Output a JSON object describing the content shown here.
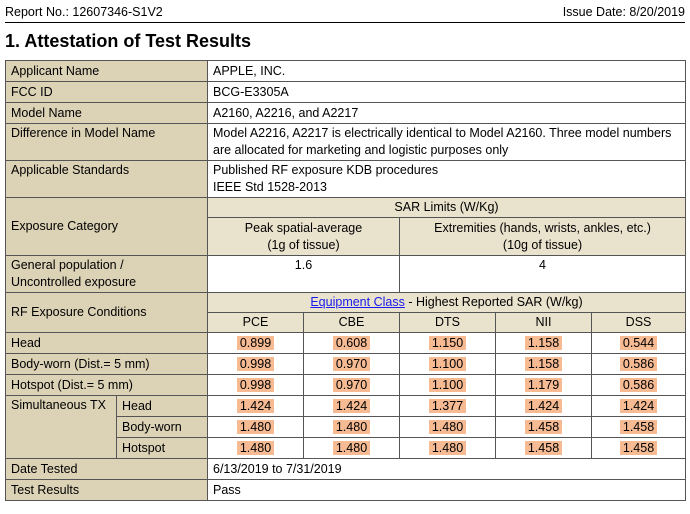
{
  "header": {
    "report_no": "Report No.: 12607346-S1V2",
    "issue_date": "Issue Date: 8/20/2019"
  },
  "section_title": "1.  Attestation of Test Results",
  "info": {
    "applicant_label": "Applicant Name",
    "applicant_value": "APPLE, INC.",
    "fcc_label": "FCC ID",
    "fcc_value": "BCG-E3305A",
    "model_label": "Model Name",
    "model_value": "A2160, A2216, and A2217",
    "diff_label": "Difference in Model Name",
    "diff_value": "Model A2216, A2217 is electrically identical to Model A2160.  Three model numbers are allocated for marketing and logistic purposes only",
    "standards_label": "Applicable Standards",
    "standards_line1": "Published RF exposure KDB procedures",
    "standards_line2": "IEEE Std 1528-2013"
  },
  "exposure": {
    "category_label": "Exposure Category",
    "sar_limits_header": "SAR Limits (W/Kg)",
    "peak_line1": "Peak spatial-average",
    "peak_line2": "(1g of tissue)",
    "ext_line1": "Extremities (hands, wrists, ankles, etc.)",
    "ext_line2": "(10g of tissue)",
    "general_line1": "General population /",
    "general_line2": "Uncontrolled exposure",
    "limit_1g": "1.6",
    "limit_10g": "4"
  },
  "rf": {
    "conditions_label": "RF Exposure Conditions",
    "equipment_class_link": "Equipment Class",
    "highest_sar_label": " - Highest Reported SAR (W/kg)",
    "columns": [
      "PCE",
      "CBE",
      "DTS",
      "NII",
      "DSS"
    ],
    "rows": [
      {
        "label": "Head",
        "values": [
          "0.899",
          "0.608",
          "1.150",
          "1.158",
          "0.544"
        ]
      },
      {
        "label": "Body-worn (Dist.= 5 mm)",
        "values": [
          "0.998",
          "0.970",
          "1.100",
          "1.158",
          "0.586"
        ]
      },
      {
        "label": "Hotspot (Dist.= 5 mm)",
        "values": [
          "0.998",
          "0.970",
          "1.100",
          "1.179",
          "0.586"
        ]
      }
    ],
    "simultaneous_label": "Simultaneous TX",
    "simultaneous_rows": [
      {
        "label": "Head",
        "values": [
          "1.424",
          "1.424",
          "1.377",
          "1.424",
          "1.424"
        ]
      },
      {
        "label": "Body-worn",
        "values": [
          "1.480",
          "1.480",
          "1.480",
          "1.458",
          "1.458"
        ]
      },
      {
        "label": "Hotspot",
        "values": [
          "1.480",
          "1.480",
          "1.480",
          "1.458",
          "1.458"
        ]
      }
    ]
  },
  "footer": {
    "date_label": "Date Tested",
    "date_value": "6/13/2019 to 7/31/2019",
    "results_label": "Test Results",
    "results_value": "Pass"
  },
  "colors": {
    "label_bg": "#dcd2b6",
    "highlight": "#f6bb93",
    "link": "#1a1aee"
  }
}
